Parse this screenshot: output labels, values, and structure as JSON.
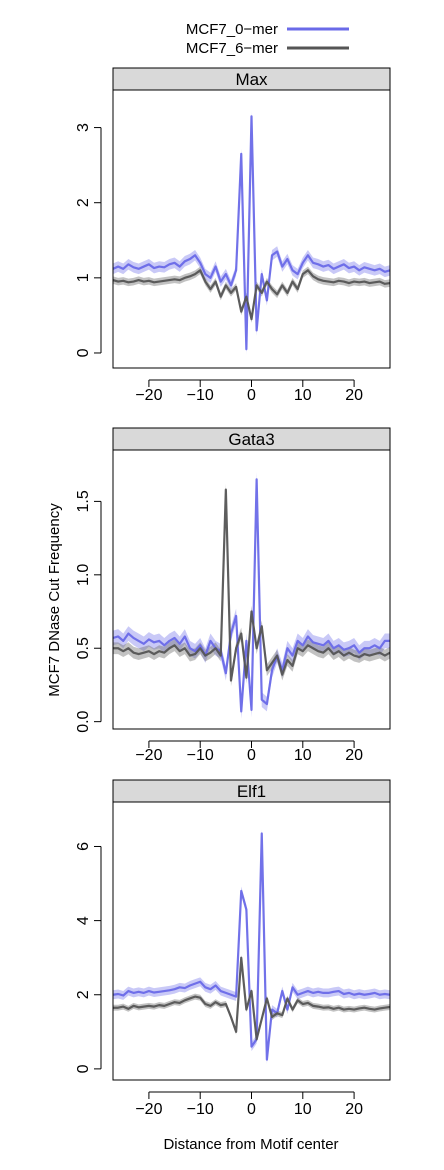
{
  "legend": {
    "entries": [
      {
        "label": "MCF7_0−mer",
        "color": "#6a6ae8"
      },
      {
        "label": "MCF7_6−mer",
        "color": "#555555"
      }
    ]
  },
  "ylabel": "MCF7 DNase Cut Frequency",
  "xlabel": "Distance from Motif center",
  "chart_data": [
    {
      "type": "line",
      "title": "Max",
      "xlim": [
        -27,
        27
      ],
      "ylim": [
        -0.2,
        3.5
      ],
      "xticks": [
        -20,
        -10,
        0,
        10,
        20
      ],
      "yticks": [
        0,
        1,
        2,
        3
      ],
      "x": [
        -27,
        -26,
        -25,
        -24,
        -23,
        -22,
        -21,
        -20,
        -19,
        -18,
        -17,
        -16,
        -15,
        -14,
        -13,
        -12,
        -11,
        -10,
        -9,
        -8,
        -7,
        -6,
        -5,
        -4,
        -3,
        -2,
        -1,
        0,
        1,
        2,
        3,
        4,
        5,
        6,
        7,
        8,
        9,
        10,
        11,
        12,
        13,
        14,
        15,
        16,
        17,
        18,
        19,
        20,
        21,
        22,
        23,
        24,
        25,
        26,
        27
      ],
      "series": [
        {
          "name": "MCF7_0−mer",
          "color": "#6a6ae8",
          "values": [
            1.12,
            1.15,
            1.12,
            1.18,
            1.14,
            1.12,
            1.15,
            1.18,
            1.13,
            1.15,
            1.14,
            1.18,
            1.2,
            1.15,
            1.22,
            1.25,
            1.3,
            1.2,
            1.05,
            1.0,
            1.15,
            0.95,
            1.05,
            0.9,
            1.1,
            2.65,
            0.05,
            3.15,
            0.3,
            1.05,
            0.7,
            1.3,
            1.35,
            1.15,
            1.25,
            1.1,
            1.05,
            1.2,
            1.3,
            1.2,
            1.18,
            1.15,
            1.17,
            1.12,
            1.15,
            1.18,
            1.13,
            1.15,
            1.1,
            1.14,
            1.12,
            1.1,
            1.12,
            1.08,
            1.1
          ],
          "band": 0.07
        },
        {
          "name": "MCF7_6−mer",
          "color": "#555555",
          "values": [
            0.97,
            0.95,
            0.96,
            0.94,
            0.95,
            0.97,
            0.95,
            0.96,
            0.94,
            0.95,
            0.96,
            0.97,
            0.98,
            0.97,
            1.0,
            1.02,
            1.05,
            1.1,
            0.95,
            0.85,
            0.95,
            0.75,
            0.9,
            0.8,
            0.88,
            0.55,
            0.75,
            0.45,
            0.9,
            0.8,
            0.95,
            0.85,
            0.78,
            0.9,
            0.8,
            0.95,
            0.85,
            1.05,
            1.1,
            1.02,
            0.98,
            0.96,
            0.95,
            0.94,
            0.96,
            0.95,
            0.93,
            0.95,
            0.94,
            0.95,
            0.93,
            0.94,
            0.95,
            0.92,
            0.93
          ],
          "band": 0.05
        }
      ]
    },
    {
      "type": "line",
      "title": "Gata3",
      "xlim": [
        -27,
        27
      ],
      "ylim": [
        -0.05,
        1.85
      ],
      "xticks": [
        -20,
        -10,
        0,
        10,
        20
      ],
      "yticks": [
        0.0,
        0.5,
        1.0,
        1.5
      ],
      "ytick_labels": [
        "0.0",
        "0.5",
        "1.0",
        "1.5"
      ],
      "x": [
        -27,
        -26,
        -25,
        -24,
        -23,
        -22,
        -21,
        -20,
        -19,
        -18,
        -17,
        -16,
        -15,
        -14,
        -13,
        -12,
        -11,
        -10,
        -9,
        -8,
        -7,
        -6,
        -5,
        -4,
        -3,
        -2,
        -1,
        0,
        1,
        2,
        3,
        4,
        5,
        6,
        7,
        8,
        9,
        10,
        11,
        12,
        13,
        14,
        15,
        16,
        17,
        18,
        19,
        20,
        21,
        22,
        23,
        24,
        25,
        26,
        27
      ],
      "series": [
        {
          "name": "MCF7_0−mer",
          "color": "#6a6ae8",
          "values": [
            0.57,
            0.58,
            0.55,
            0.6,
            0.57,
            0.55,
            0.53,
            0.56,
            0.54,
            0.55,
            0.52,
            0.55,
            0.57,
            0.53,
            0.58,
            0.5,
            0.48,
            0.52,
            0.45,
            0.55,
            0.5,
            0.48,
            0.33,
            0.6,
            0.72,
            0.07,
            0.55,
            0.08,
            1.65,
            0.15,
            0.12,
            0.35,
            0.45,
            0.35,
            0.5,
            0.45,
            0.55,
            0.52,
            0.58,
            0.54,
            0.53,
            0.52,
            0.55,
            0.5,
            0.52,
            0.49,
            0.5,
            0.52,
            0.47,
            0.5,
            0.5,
            0.52,
            0.5,
            0.55,
            0.55
          ],
          "band": 0.05
        },
        {
          "name": "MCF7_6−mer",
          "color": "#555555",
          "values": [
            0.5,
            0.5,
            0.48,
            0.5,
            0.47,
            0.46,
            0.47,
            0.48,
            0.46,
            0.48,
            0.47,
            0.5,
            0.52,
            0.48,
            0.5,
            0.45,
            0.46,
            0.5,
            0.45,
            0.47,
            0.5,
            0.45,
            1.58,
            0.28,
            0.5,
            0.6,
            0.3,
            0.75,
            0.5,
            0.65,
            0.35,
            0.4,
            0.45,
            0.32,
            0.42,
            0.38,
            0.5,
            0.48,
            0.52,
            0.5,
            0.48,
            0.47,
            0.5,
            0.46,
            0.48,
            0.45,
            0.47,
            0.45,
            0.44,
            0.46,
            0.45,
            0.46,
            0.47,
            0.45,
            0.47
          ],
          "band": 0.04
        }
      ]
    },
    {
      "type": "line",
      "title": "Elf1",
      "xlim": [
        -27,
        27
      ],
      "ylim": [
        -0.3,
        7.2
      ],
      "xticks": [
        -20,
        -10,
        0,
        10,
        20
      ],
      "yticks": [
        0,
        2,
        4,
        6
      ],
      "x": [
        -27,
        -26,
        -25,
        -24,
        -23,
        -22,
        -21,
        -20,
        -19,
        -18,
        -17,
        -16,
        -15,
        -14,
        -13,
        -12,
        -11,
        -10,
        -9,
        -8,
        -7,
        -6,
        -5,
        -4,
        -3,
        -2,
        -1,
        0,
        1,
        2,
        3,
        4,
        5,
        6,
        7,
        8,
        9,
        10,
        11,
        12,
        13,
        14,
        15,
        16,
        17,
        18,
        19,
        20,
        21,
        22,
        23,
        24,
        25,
        26,
        27
      ],
      "series": [
        {
          "name": "MCF7_0−mer",
          "color": "#6a6ae8",
          "values": [
            2.0,
            2.02,
            1.98,
            2.1,
            2.05,
            2.08,
            2.05,
            2.1,
            2.06,
            2.08,
            2.1,
            2.12,
            2.15,
            2.2,
            2.18,
            2.25,
            2.3,
            2.35,
            2.2,
            2.15,
            2.25,
            2.1,
            2.05,
            2.0,
            1.95,
            4.8,
            4.3,
            0.6,
            0.8,
            6.35,
            0.25,
            1.6,
            1.5,
            2.1,
            1.6,
            2.2,
            2.0,
            2.05,
            2.1,
            2.05,
            2.08,
            2.05,
            2.05,
            2.08,
            2.1,
            2.02,
            2.05,
            2.0,
            2.03,
            2.0,
            2.02,
            2.05,
            2.0,
            2.02,
            2.0
          ],
          "band": 0.12
        },
        {
          "name": "MCF7_6−mer",
          "color": "#555555",
          "values": [
            1.65,
            1.65,
            1.68,
            1.62,
            1.7,
            1.66,
            1.68,
            1.7,
            1.68,
            1.72,
            1.7,
            1.75,
            1.8,
            1.78,
            1.85,
            1.9,
            1.95,
            1.92,
            1.75,
            1.7,
            1.8,
            1.72,
            1.75,
            1.4,
            1.0,
            3.0,
            1.6,
            2.1,
            0.8,
            1.35,
            1.9,
            1.4,
            1.5,
            1.45,
            1.9,
            1.6,
            1.85,
            1.75,
            1.78,
            1.7,
            1.68,
            1.65,
            1.66,
            1.62,
            1.65,
            1.6,
            1.62,
            1.6,
            1.63,
            1.65,
            1.62,
            1.6,
            1.63,
            1.65,
            1.67
          ],
          "band": 0.08
        }
      ]
    }
  ]
}
